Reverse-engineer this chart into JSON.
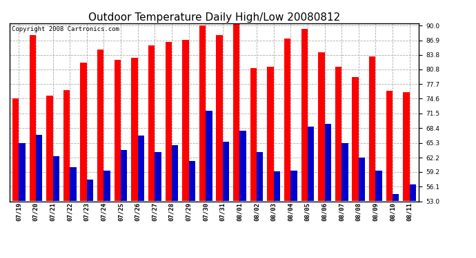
{
  "title": "Outdoor Temperature Daily High/Low 20080812",
  "copyright": "Copyright 2008 Cartronics.com",
  "dates": [
    "07/19",
    "07/20",
    "07/21",
    "07/22",
    "07/23",
    "07/24",
    "07/25",
    "07/26",
    "07/27",
    "07/28",
    "07/29",
    "07/30",
    "07/31",
    "08/01",
    "08/02",
    "08/03",
    "08/04",
    "08/05",
    "08/06",
    "08/07",
    "08/08",
    "08/09",
    "08/10",
    "08/11"
  ],
  "highs": [
    74.6,
    88.0,
    75.2,
    76.4,
    82.2,
    85.0,
    82.8,
    83.2,
    85.8,
    86.6,
    87.0,
    90.0,
    88.0,
    90.4,
    81.0,
    81.3,
    87.3,
    89.3,
    84.4,
    81.3,
    79.2,
    83.5,
    76.2,
    76.0
  ],
  "lows": [
    65.3,
    67.0,
    62.5,
    60.2,
    57.5,
    59.5,
    63.8,
    66.8,
    63.4,
    64.8,
    61.5,
    72.0,
    65.5,
    67.8,
    63.3,
    59.3,
    59.4,
    68.7,
    69.3,
    65.3,
    62.2,
    59.5,
    54.5,
    56.5
  ],
  "high_color": "#ff0000",
  "low_color": "#0000cc",
  "ylim_min": 53.0,
  "ylim_max": 90.5,
  "yticks": [
    53.0,
    56.1,
    59.2,
    62.2,
    65.3,
    68.4,
    71.5,
    74.6,
    77.7,
    80.8,
    83.8,
    86.9,
    90.0
  ],
  "bg_color": "#ffffff",
  "grid_color": "#aaaaaa",
  "bar_width": 0.38,
  "title_fontsize": 11,
  "tick_fontsize": 6.5,
  "copyright_fontsize": 6.5
}
